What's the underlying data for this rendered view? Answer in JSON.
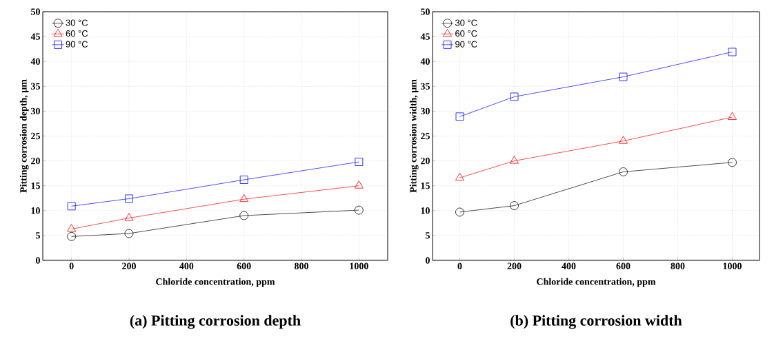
{
  "chart_data": [
    {
      "type": "line",
      "title": "(a)  Pitting corrosion depth",
      "xlabel": "Chloride concentration, ppm",
      "ylabel": "Pitting corrosion depth, μm",
      "x": [
        0,
        200,
        600,
        1000
      ],
      "xlim": [
        -100,
        1100
      ],
      "xticks": [
        0,
        200,
        400,
        600,
        800,
        1000
      ],
      "ylim": [
        0,
        50
      ],
      "yticks": [
        0,
        5,
        10,
        15,
        20,
        25,
        30,
        35,
        40,
        45,
        50
      ],
      "grid": true,
      "legend": "top left",
      "line_style": "solid",
      "series": [
        {
          "name": "30 °C",
          "color": "#000000",
          "marker": "circle",
          "values": [
            4.8,
            5.4,
            9.0,
            10.1
          ]
        },
        {
          "name": "60 °C",
          "color": "#ff0000",
          "marker": "triangle",
          "values": [
            6.3,
            8.5,
            12.3,
            15.0
          ]
        },
        {
          "name": "90 °C",
          "color": "#0000ff",
          "marker": "square",
          "values": [
            10.9,
            12.4,
            16.2,
            19.8
          ]
        }
      ]
    },
    {
      "type": "line",
      "title": "(b)  Pitting corrosion width",
      "xlabel": "Chloride concentration, ppm",
      "ylabel": "Pitting corrosion width, μm",
      "x": [
        0,
        200,
        600,
        1000
      ],
      "xlim": [
        -100,
        1100
      ],
      "xticks": [
        0,
        200,
        400,
        600,
        800,
        1000
      ],
      "ylim": [
        0,
        50
      ],
      "yticks": [
        0,
        5,
        10,
        15,
        20,
        25,
        30,
        35,
        40,
        45,
        50
      ],
      "grid": true,
      "legend": "top left",
      "line_style": "solid",
      "series": [
        {
          "name": "30 °C",
          "color": "#000000",
          "marker": "circle",
          "values": [
            9.7,
            11.0,
            17.8,
            19.7
          ]
        },
        {
          "name": "60 °C",
          "color": "#ff0000",
          "marker": "triangle",
          "values": [
            16.6,
            20.0,
            24.0,
            28.8
          ]
        },
        {
          "name": "90 °C",
          "color": "#0000ff",
          "marker": "square",
          "values": [
            28.9,
            32.9,
            36.9,
            41.9
          ]
        }
      ]
    }
  ]
}
